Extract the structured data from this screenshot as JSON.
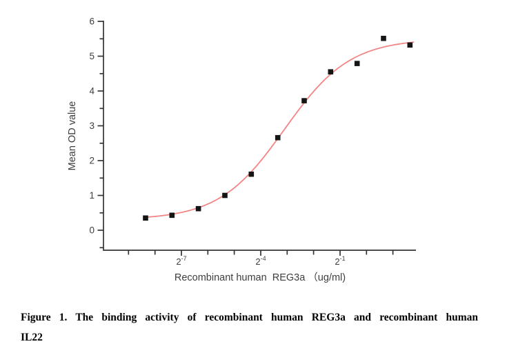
{
  "page": {
    "background": "#ffffff"
  },
  "caption": {
    "line1": "Figure 1. The binding activity of  recombinant human REG3a and recombinant human",
    "line2": "IL22"
  },
  "chart_data": {
    "type": "scatter",
    "title": "",
    "xlabel": "Recombinant human  REG3a （ug/ml)",
    "ylabel": "Mean OD value",
    "x_scale": "log2",
    "ylim": [
      0,
      6
    ],
    "y_major_ticks": [
      0,
      1,
      2,
      3,
      4,
      5,
      6
    ],
    "y_minor_ticks": [
      -0.5,
      0.5,
      1.5,
      2.5,
      3.5,
      4.5,
      5.5
    ],
    "x_minor_tick_exponents": [
      -9,
      -8,
      -6,
      -5,
      -3,
      -2,
      0,
      1
    ],
    "x_major_ticks": [
      {
        "exp": -7,
        "base": "2",
        "sup": "-7"
      },
      {
        "exp": -4,
        "base": "2",
        "sup": "-4"
      },
      {
        "exp": -1,
        "base": "2",
        "sup": "-1"
      }
    ],
    "points": [
      {
        "conc": 0.00305,
        "od": 0.35
      },
      {
        "conc": 0.0061,
        "od": 0.43
      },
      {
        "conc": 0.0122,
        "od": 0.62
      },
      {
        "conc": 0.0244,
        "od": 1.0
      },
      {
        "conc": 0.0488,
        "od": 1.61
      },
      {
        "conc": 0.0977,
        "od": 2.66
      },
      {
        "conc": 0.1953,
        "od": 3.72
      },
      {
        "conc": 0.3906,
        "od": 4.55
      },
      {
        "conc": 0.7813,
        "od": 4.79
      },
      {
        "conc": 1.5625,
        "od": 5.51
      },
      {
        "conc": 3.125,
        "od": 5.32
      }
    ],
    "fit": {
      "type": "logistic",
      "bottom": 0.3,
      "top": 5.5,
      "mid_exp": -3.1,
      "slope": 0.81,
      "x_start_exp": -8.36,
      "x_end_exp": 1.82
    },
    "legend": null,
    "grid": false,
    "colors": {
      "curve": "#f28585",
      "marker": "#151515",
      "axis": "#333333",
      "text": "#3d3d3d"
    }
  }
}
